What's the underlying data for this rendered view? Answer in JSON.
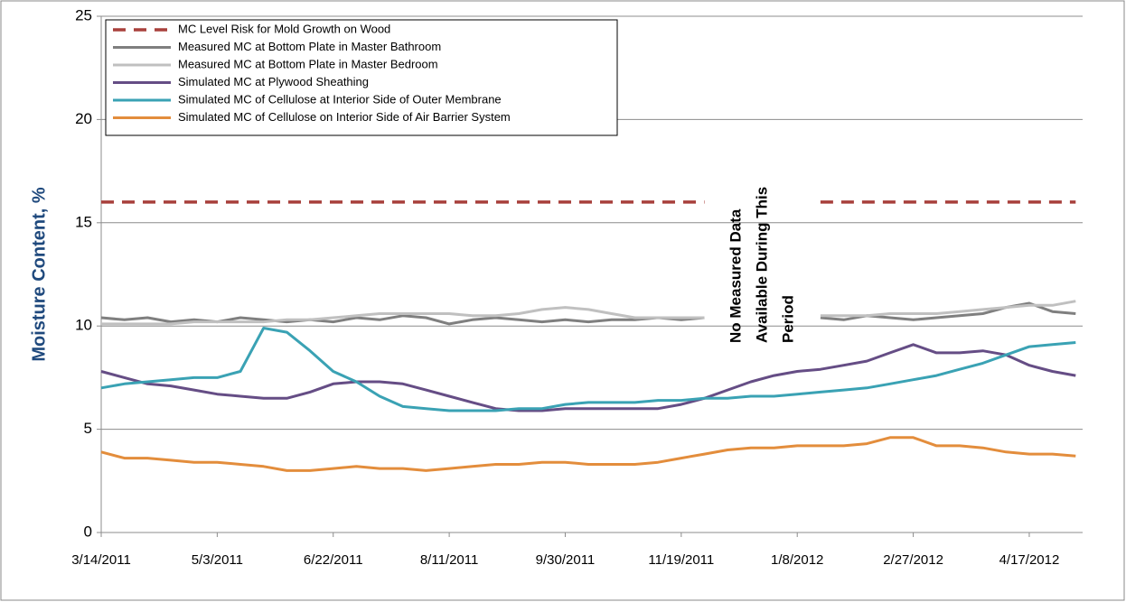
{
  "chart_data": {
    "type": "line",
    "y_label": "Moisture Content, %",
    "annotation": [
      "No Measured Data",
      "Available During This",
      "Period"
    ],
    "x": [
      "2011-03-14",
      "2011-03-24",
      "2011-04-03",
      "2011-04-13",
      "2011-04-23",
      "2011-05-03",
      "2011-05-13",
      "2011-05-23",
      "2011-06-02",
      "2011-06-12",
      "2011-06-22",
      "2011-07-02",
      "2011-07-12",
      "2011-07-22",
      "2011-08-01",
      "2011-08-11",
      "2011-08-21",
      "2011-08-31",
      "2011-09-10",
      "2011-09-20",
      "2011-09-30",
      "2011-10-10",
      "2011-10-20",
      "2011-10-30",
      "2011-11-09",
      "2011-11-19",
      "2011-11-29",
      "2011-12-09",
      "2011-12-19",
      "2011-12-29",
      "2012-01-08",
      "2012-01-18",
      "2012-01-28",
      "2012-02-07",
      "2012-02-17",
      "2012-02-27",
      "2012-03-08",
      "2012-03-18",
      "2012-03-28",
      "2012-04-07",
      "2012-04-17",
      "2012-04-27",
      "2012-05-07"
    ],
    "series": [
      {
        "name": "MC Level Risk for Mold Growth on Wood",
        "color": "#a8403c",
        "line_style": "dashed",
        "values": [
          16,
          16,
          16,
          16,
          16,
          16,
          16,
          16,
          16,
          16,
          16,
          16,
          16,
          16,
          16,
          16,
          16,
          16,
          16,
          16,
          16,
          16,
          16,
          16,
          16,
          16,
          16,
          null,
          null,
          null,
          null,
          16,
          16,
          16,
          16,
          16,
          16,
          16,
          16,
          16,
          16,
          16,
          16
        ]
      },
      {
        "name": "Measured MC at Bottom Plate in Master Bathroom",
        "color": "#7f7f7f",
        "line_style": "solid",
        "values": [
          10.4,
          10.3,
          10.4,
          10.2,
          10.3,
          10.2,
          10.4,
          10.3,
          10.2,
          10.3,
          10.2,
          10.4,
          10.3,
          10.5,
          10.4,
          10.1,
          10.3,
          10.4,
          10.3,
          10.2,
          10.3,
          10.2,
          10.3,
          10.3,
          10.4,
          10.3,
          10.4,
          null,
          null,
          null,
          null,
          10.4,
          10.3,
          10.5,
          10.4,
          10.3,
          10.4,
          10.5,
          10.6,
          10.9,
          11.1,
          10.7,
          10.6
        ]
      },
      {
        "name": "Measured MC at Bottom Plate in Master Bedroom",
        "color": "#c0c0c0",
        "line_style": "solid",
        "values": [
          10.1,
          10.1,
          10.1,
          10.1,
          10.2,
          10.2,
          10.2,
          10.2,
          10.3,
          10.3,
          10.4,
          10.5,
          10.6,
          10.6,
          10.6,
          10.6,
          10.5,
          10.5,
          10.6,
          10.8,
          10.9,
          10.8,
          10.6,
          10.4,
          10.4,
          10.4,
          10.4,
          null,
          null,
          null,
          null,
          10.5,
          10.5,
          10.5,
          10.6,
          10.6,
          10.6,
          10.7,
          10.8,
          10.9,
          11.0,
          11.0,
          11.2
        ]
      },
      {
        "name": "Simulated MC at Plywood Sheathing",
        "color": "#654d85",
        "line_style": "solid",
        "values": [
          7.8,
          7.5,
          7.2,
          7.1,
          6.9,
          6.7,
          6.6,
          6.5,
          6.5,
          6.8,
          7.2,
          7.3,
          7.3,
          7.2,
          6.9,
          6.6,
          6.3,
          6.0,
          5.9,
          5.9,
          6.0,
          6.0,
          6.0,
          6.0,
          6.0,
          6.2,
          6.5,
          6.9,
          7.3,
          7.6,
          7.8,
          7.9,
          8.1,
          8.3,
          8.7,
          9.1,
          8.7,
          8.7,
          8.8,
          8.6,
          8.1,
          7.8,
          7.6
        ]
      },
      {
        "name": "Simulated MC of Cellulose at Interior Side of Outer Membrane",
        "color": "#3aa2b4",
        "line_style": "solid",
        "values": [
          7.0,
          7.2,
          7.3,
          7.4,
          7.5,
          7.5,
          7.8,
          9.9,
          9.7,
          8.8,
          7.8,
          7.3,
          6.6,
          6.1,
          6.0,
          5.9,
          5.9,
          5.9,
          6.0,
          6.0,
          6.2,
          6.3,
          6.3,
          6.3,
          6.4,
          6.4,
          6.5,
          6.5,
          6.6,
          6.6,
          6.7,
          6.8,
          6.9,
          7.0,
          7.2,
          7.4,
          7.6,
          7.9,
          8.2,
          8.6,
          9.0,
          9.1,
          9.2
        ]
      },
      {
        "name": "Simulated MC of Cellulose on Interior Side of Air Barrier System",
        "color": "#e38d3c",
        "line_style": "solid",
        "values": [
          3.9,
          3.6,
          3.6,
          3.5,
          3.4,
          3.4,
          3.3,
          3.2,
          3.0,
          3.0,
          3.1,
          3.2,
          3.1,
          3.1,
          3.0,
          3.1,
          3.2,
          3.3,
          3.3,
          3.4,
          3.4,
          3.3,
          3.3,
          3.3,
          3.4,
          3.6,
          3.8,
          4.0,
          4.1,
          4.1,
          4.2,
          4.2,
          4.2,
          4.3,
          4.6,
          4.6,
          4.2,
          4.2,
          4.1,
          3.9,
          3.8,
          3.8,
          3.7
        ]
      }
    ],
    "xlim": [
      "2011-03-14",
      "2012-05-10"
    ],
    "xticks": [
      {
        "value": "2011-03-14",
        "label": "3/14/2011"
      },
      {
        "value": "2011-05-03",
        "label": "5/3/2011"
      },
      {
        "value": "2011-06-22",
        "label": "6/22/2011"
      },
      {
        "value": "2011-08-11",
        "label": "8/11/2011"
      },
      {
        "value": "2011-09-30",
        "label": "9/30/2011"
      },
      {
        "value": "2011-11-19",
        "label": "11/19/2011"
      },
      {
        "value": "2012-01-08",
        "label": "1/8/2012"
      },
      {
        "value": "2012-02-27",
        "label": "2/27/2012"
      },
      {
        "value": "2012-04-17",
        "label": "4/17/2012"
      }
    ],
    "ylim": [
      0,
      25
    ],
    "yticks": [
      0,
      5,
      10,
      15,
      20,
      25
    ],
    "grid": true,
    "legend": "upper left"
  }
}
